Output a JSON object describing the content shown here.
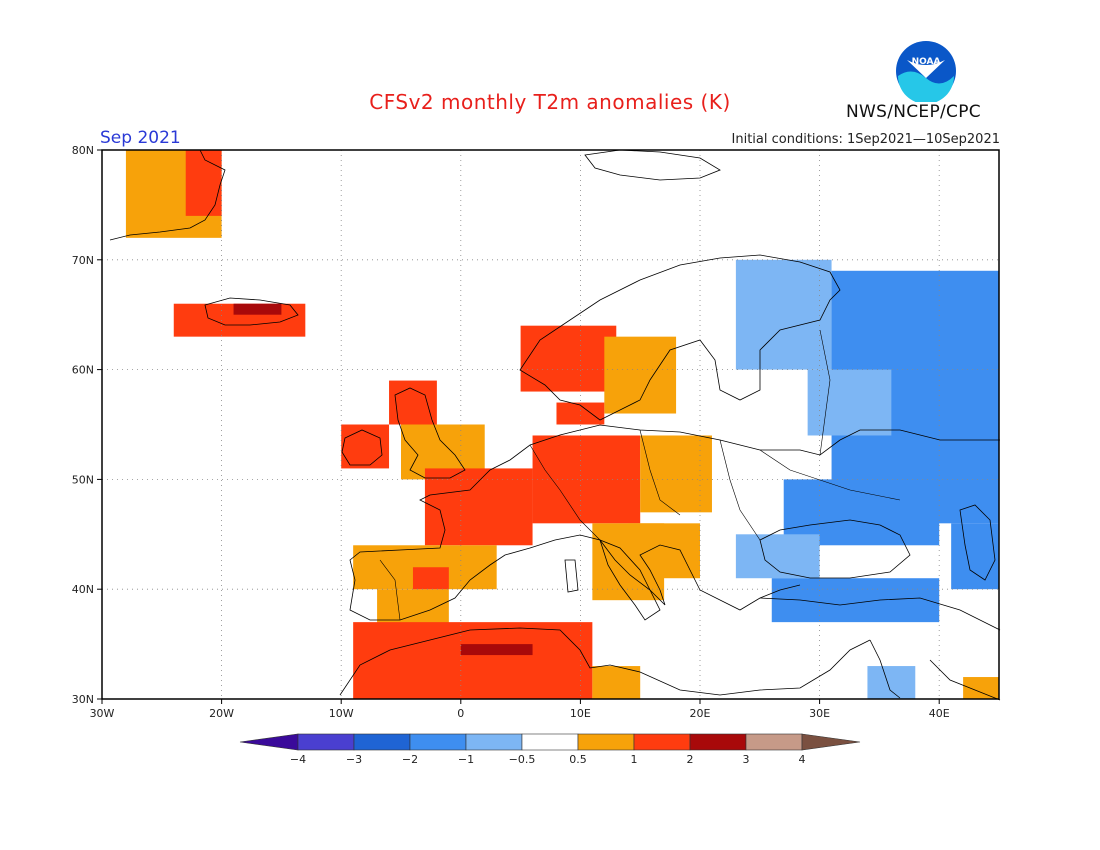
{
  "title": "CFSv2 monthly T2m anomalies (K)",
  "month_label": "Sep 2021",
  "initial_conditions": "Initial conditions: 1Sep2021—10Sep2021",
  "agency": "NWS/NCEP/CPC",
  "logo": {
    "text": "NOAA",
    "icon": "noaa-logo-icon"
  },
  "axes": {
    "lat_ticks": [
      "30N",
      "40N",
      "50N",
      "60N",
      "70N",
      "80N"
    ],
    "lon_ticks": [
      "30W",
      "20W",
      "10W",
      "0",
      "10E",
      "20E",
      "30E",
      "40E"
    ],
    "lat_range": [
      30,
      80
    ],
    "lon_range": [
      -30,
      45
    ],
    "grid": "dotted"
  },
  "colorbar": {
    "ticks": [
      "−4",
      "−3",
      "−2",
      "−1",
      "−0.5",
      "0.5",
      "1",
      "2",
      "3",
      "4"
    ],
    "colors": [
      "#3a0a9a",
      "#4a3fd0",
      "#1f64d4",
      "#3e8ef0",
      "#7db6f4",
      "#ffffff",
      "#f7a20a",
      "#ff3c0f",
      "#a8090a",
      "#c69a88",
      "#7a5040"
    ]
  },
  "chart_data": {
    "type": "heatmap",
    "variable": "T2m anomaly",
    "units": "K",
    "cell_deg": 1,
    "palette": {
      "-2": "#3e8ef0",
      "-1": "#7db6f4",
      "1": "#f7a20a",
      "2": "#ff3c0f",
      "3": "#a8090a"
    },
    "regions": [
      {
        "name": "Greenland (east)",
        "level": 1,
        "lon": [
          -28,
          -20
        ],
        "lat": [
          72,
          80
        ]
      },
      {
        "name": "Greenland (east coast core)",
        "level": 2,
        "lon": [
          -23,
          -20
        ],
        "lat": [
          74,
          80
        ]
      },
      {
        "name": "Iceland",
        "level": 2,
        "lon": [
          -24,
          -13
        ],
        "lat": [
          63,
          66
        ]
      },
      {
        "name": "Iceland (core)",
        "level": 3,
        "lon": [
          -19,
          -15
        ],
        "lat": [
          65,
          66
        ]
      },
      {
        "name": "Scotland",
        "level": 2,
        "lon": [
          -6,
          -2
        ],
        "lat": [
          55,
          59
        ]
      },
      {
        "name": "Ireland",
        "level": 2,
        "lon": [
          -10,
          -6
        ],
        "lat": [
          51,
          55
        ]
      },
      {
        "name": "England",
        "level": 1,
        "lon": [
          -5,
          2
        ],
        "lat": [
          50,
          55
        ]
      },
      {
        "name": "Norway",
        "level": 2,
        "lon": [
          5,
          13
        ],
        "lat": [
          58,
          64
        ]
      },
      {
        "name": "Sweden",
        "level": 1,
        "lon": [
          12,
          18
        ],
        "lat": [
          56,
          63
        ]
      },
      {
        "name": "Denmark",
        "level": 2,
        "lon": [
          8,
          12
        ],
        "lat": [
          55,
          57
        ]
      },
      {
        "name": "France",
        "level": 2,
        "lon": [
          -3,
          6
        ],
        "lat": [
          44,
          51
        ]
      },
      {
        "name": "Germany / Alps",
        "level": 2,
        "lon": [
          6,
          15
        ],
        "lat": [
          46,
          54
        ]
      },
      {
        "name": "Poland / Central Europe",
        "level": 1,
        "lon": [
          15,
          21
        ],
        "lat": [
          47,
          54
        ]
      },
      {
        "name": "Northern Spain",
        "level": 1,
        "lon": [
          -9,
          3
        ],
        "lat": [
          40,
          44
        ]
      },
      {
        "name": "Southern Spain",
        "level": 1,
        "lon": [
          -7,
          -1
        ],
        "lat": [
          36,
          40
        ]
      },
      {
        "name": "Spain (core)",
        "level": 2,
        "lon": [
          -4,
          -1
        ],
        "lat": [
          40,
          42
        ]
      },
      {
        "name": "Italy",
        "level": 1,
        "lon": [
          11,
          17
        ],
        "lat": [
          39,
          46
        ]
      },
      {
        "name": "Balkans coast",
        "level": 1,
        "lon": [
          14,
          20
        ],
        "lat": [
          41,
          46
        ]
      },
      {
        "name": "North Africa",
        "level": 2,
        "lon": [
          -9,
          11
        ],
        "lat": [
          30,
          37
        ]
      },
      {
        "name": "North Africa (core)",
        "level": 3,
        "lon": [
          0,
          6
        ],
        "lat": [
          34,
          35
        ]
      },
      {
        "name": "Libya",
        "level": 1,
        "lon": [
          11,
          15
        ],
        "lat": [
          30,
          33
        ]
      },
      {
        "name": "Finland / NW Russia",
        "level": -1,
        "lon": [
          23,
          31
        ],
        "lat": [
          60,
          70
        ]
      },
      {
        "name": "Western Russia",
        "level": -2,
        "lon": [
          31,
          45
        ],
        "lat": [
          46,
          69
        ]
      },
      {
        "name": "Baltic / Belarus",
        "level": -1,
        "lon": [
          29,
          36
        ],
        "lat": [
          54,
          60
        ]
      },
      {
        "name": "Ukraine",
        "level": -2,
        "lon": [
          27,
          40
        ],
        "lat": [
          44,
          50
        ]
      },
      {
        "name": "Black Sea coast",
        "level": -1,
        "lon": [
          23,
          30
        ],
        "lat": [
          41,
          45
        ]
      },
      {
        "name": "Turkey",
        "level": -2,
        "lon": [
          26,
          40
        ],
        "lat": [
          37,
          41
        ]
      },
      {
        "name": "Caspian (west)",
        "level": -2,
        "lon": [
          41,
          45
        ],
        "lat": [
          40,
          46
        ]
      },
      {
        "name": "Middle East (scattered)",
        "level": -1,
        "lon": [
          34,
          38
        ],
        "lat": [
          30,
          33
        ]
      },
      {
        "name": "Egypt (east)",
        "level": 1,
        "lon": [
          42,
          45
        ],
        "lat": [
          30,
          32
        ]
      }
    ]
  }
}
